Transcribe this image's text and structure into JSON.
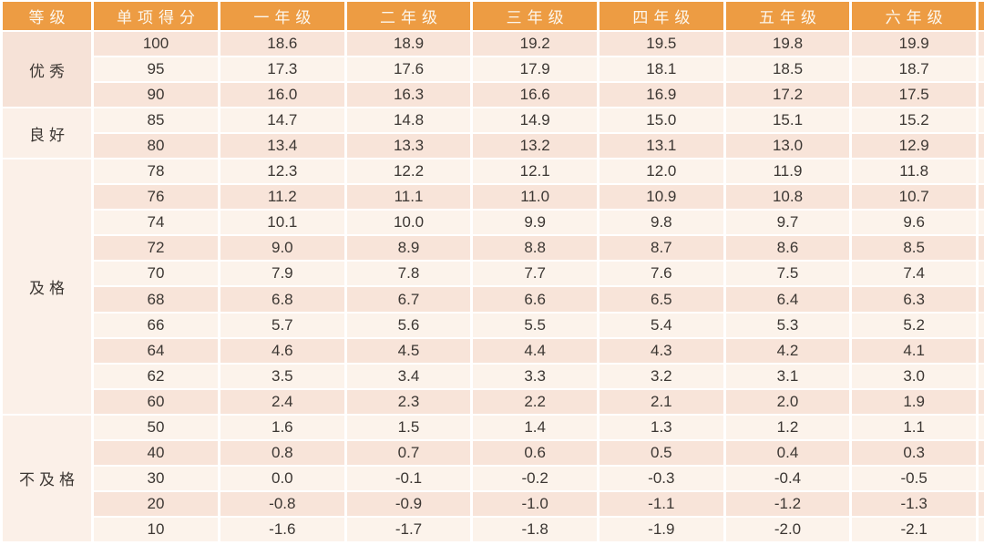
{
  "colors": {
    "header_bg": "#ED9C43",
    "header_text": "#FCF7EE",
    "row_pink": "#F8E4D9",
    "row_cream": "#FCF3EB",
    "grade_cell_pink": "#F6E2D7",
    "grade_cell_cream": "#FBF0E8",
    "gridline": "#FFFFFF",
    "body_text": "#3C3733"
  },
  "chart_data": {
    "type": "table",
    "title": "",
    "columns": [
      "等级",
      "单项得分",
      "一年级",
      "二年级",
      "三年级",
      "四年级",
      "五年级",
      "六年级"
    ],
    "groups": [
      {
        "grade": "优秀",
        "rows": [
          [
            "100",
            "18.6",
            "18.9",
            "19.2",
            "19.5",
            "19.8",
            "19.9"
          ],
          [
            "95",
            "17.3",
            "17.6",
            "17.9",
            "18.1",
            "18.5",
            "18.7"
          ],
          [
            "90",
            "16.0",
            "16.3",
            "16.6",
            "16.9",
            "17.2",
            "17.5"
          ]
        ]
      },
      {
        "grade": "良好",
        "rows": [
          [
            "85",
            "14.7",
            "14.8",
            "14.9",
            "15.0",
            "15.1",
            "15.2"
          ],
          [
            "80",
            "13.4",
            "13.3",
            "13.2",
            "13.1",
            "13.0",
            "12.9"
          ]
        ]
      },
      {
        "grade": "及格",
        "rows": [
          [
            "78",
            "12.3",
            "12.2",
            "12.1",
            "12.0",
            "11.9",
            "11.8"
          ],
          [
            "76",
            "11.2",
            "11.1",
            "11.0",
            "10.9",
            "10.8",
            "10.7"
          ],
          [
            "74",
            "10.1",
            "10.0",
            "9.9",
            "9.8",
            "9.7",
            "9.6"
          ],
          [
            "72",
            "9.0",
            "8.9",
            "8.8",
            "8.7",
            "8.6",
            "8.5"
          ],
          [
            "70",
            "7.9",
            "7.8",
            "7.7",
            "7.6",
            "7.5",
            "7.4"
          ],
          [
            "68",
            "6.8",
            "6.7",
            "6.6",
            "6.5",
            "6.4",
            "6.3"
          ],
          [
            "66",
            "5.7",
            "5.6",
            "5.5",
            "5.4",
            "5.3",
            "5.2"
          ],
          [
            "64",
            "4.6",
            "4.5",
            "4.4",
            "4.3",
            "4.2",
            "4.1"
          ],
          [
            "62",
            "3.5",
            "3.4",
            "3.3",
            "3.2",
            "3.1",
            "3.0"
          ],
          [
            "60",
            "2.4",
            "2.3",
            "2.2",
            "2.1",
            "2.0",
            "1.9"
          ]
        ]
      },
      {
        "grade": "不及格",
        "rows": [
          [
            "50",
            "1.6",
            "1.5",
            "1.4",
            "1.3",
            "1.2",
            "1.1"
          ],
          [
            "40",
            "0.8",
            "0.7",
            "0.6",
            "0.5",
            "0.4",
            "0.3"
          ],
          [
            "30",
            "0.0",
            "-0.1",
            "-0.2",
            "-0.3",
            "-0.4",
            "-0.5"
          ],
          [
            "20",
            "-0.8",
            "-0.9",
            "-1.0",
            "-1.1",
            "-1.2",
            "-1.3"
          ],
          [
            "10",
            "-1.6",
            "-1.7",
            "-1.8",
            "-1.9",
            "-2.0",
            "-2.1"
          ]
        ]
      }
    ]
  }
}
